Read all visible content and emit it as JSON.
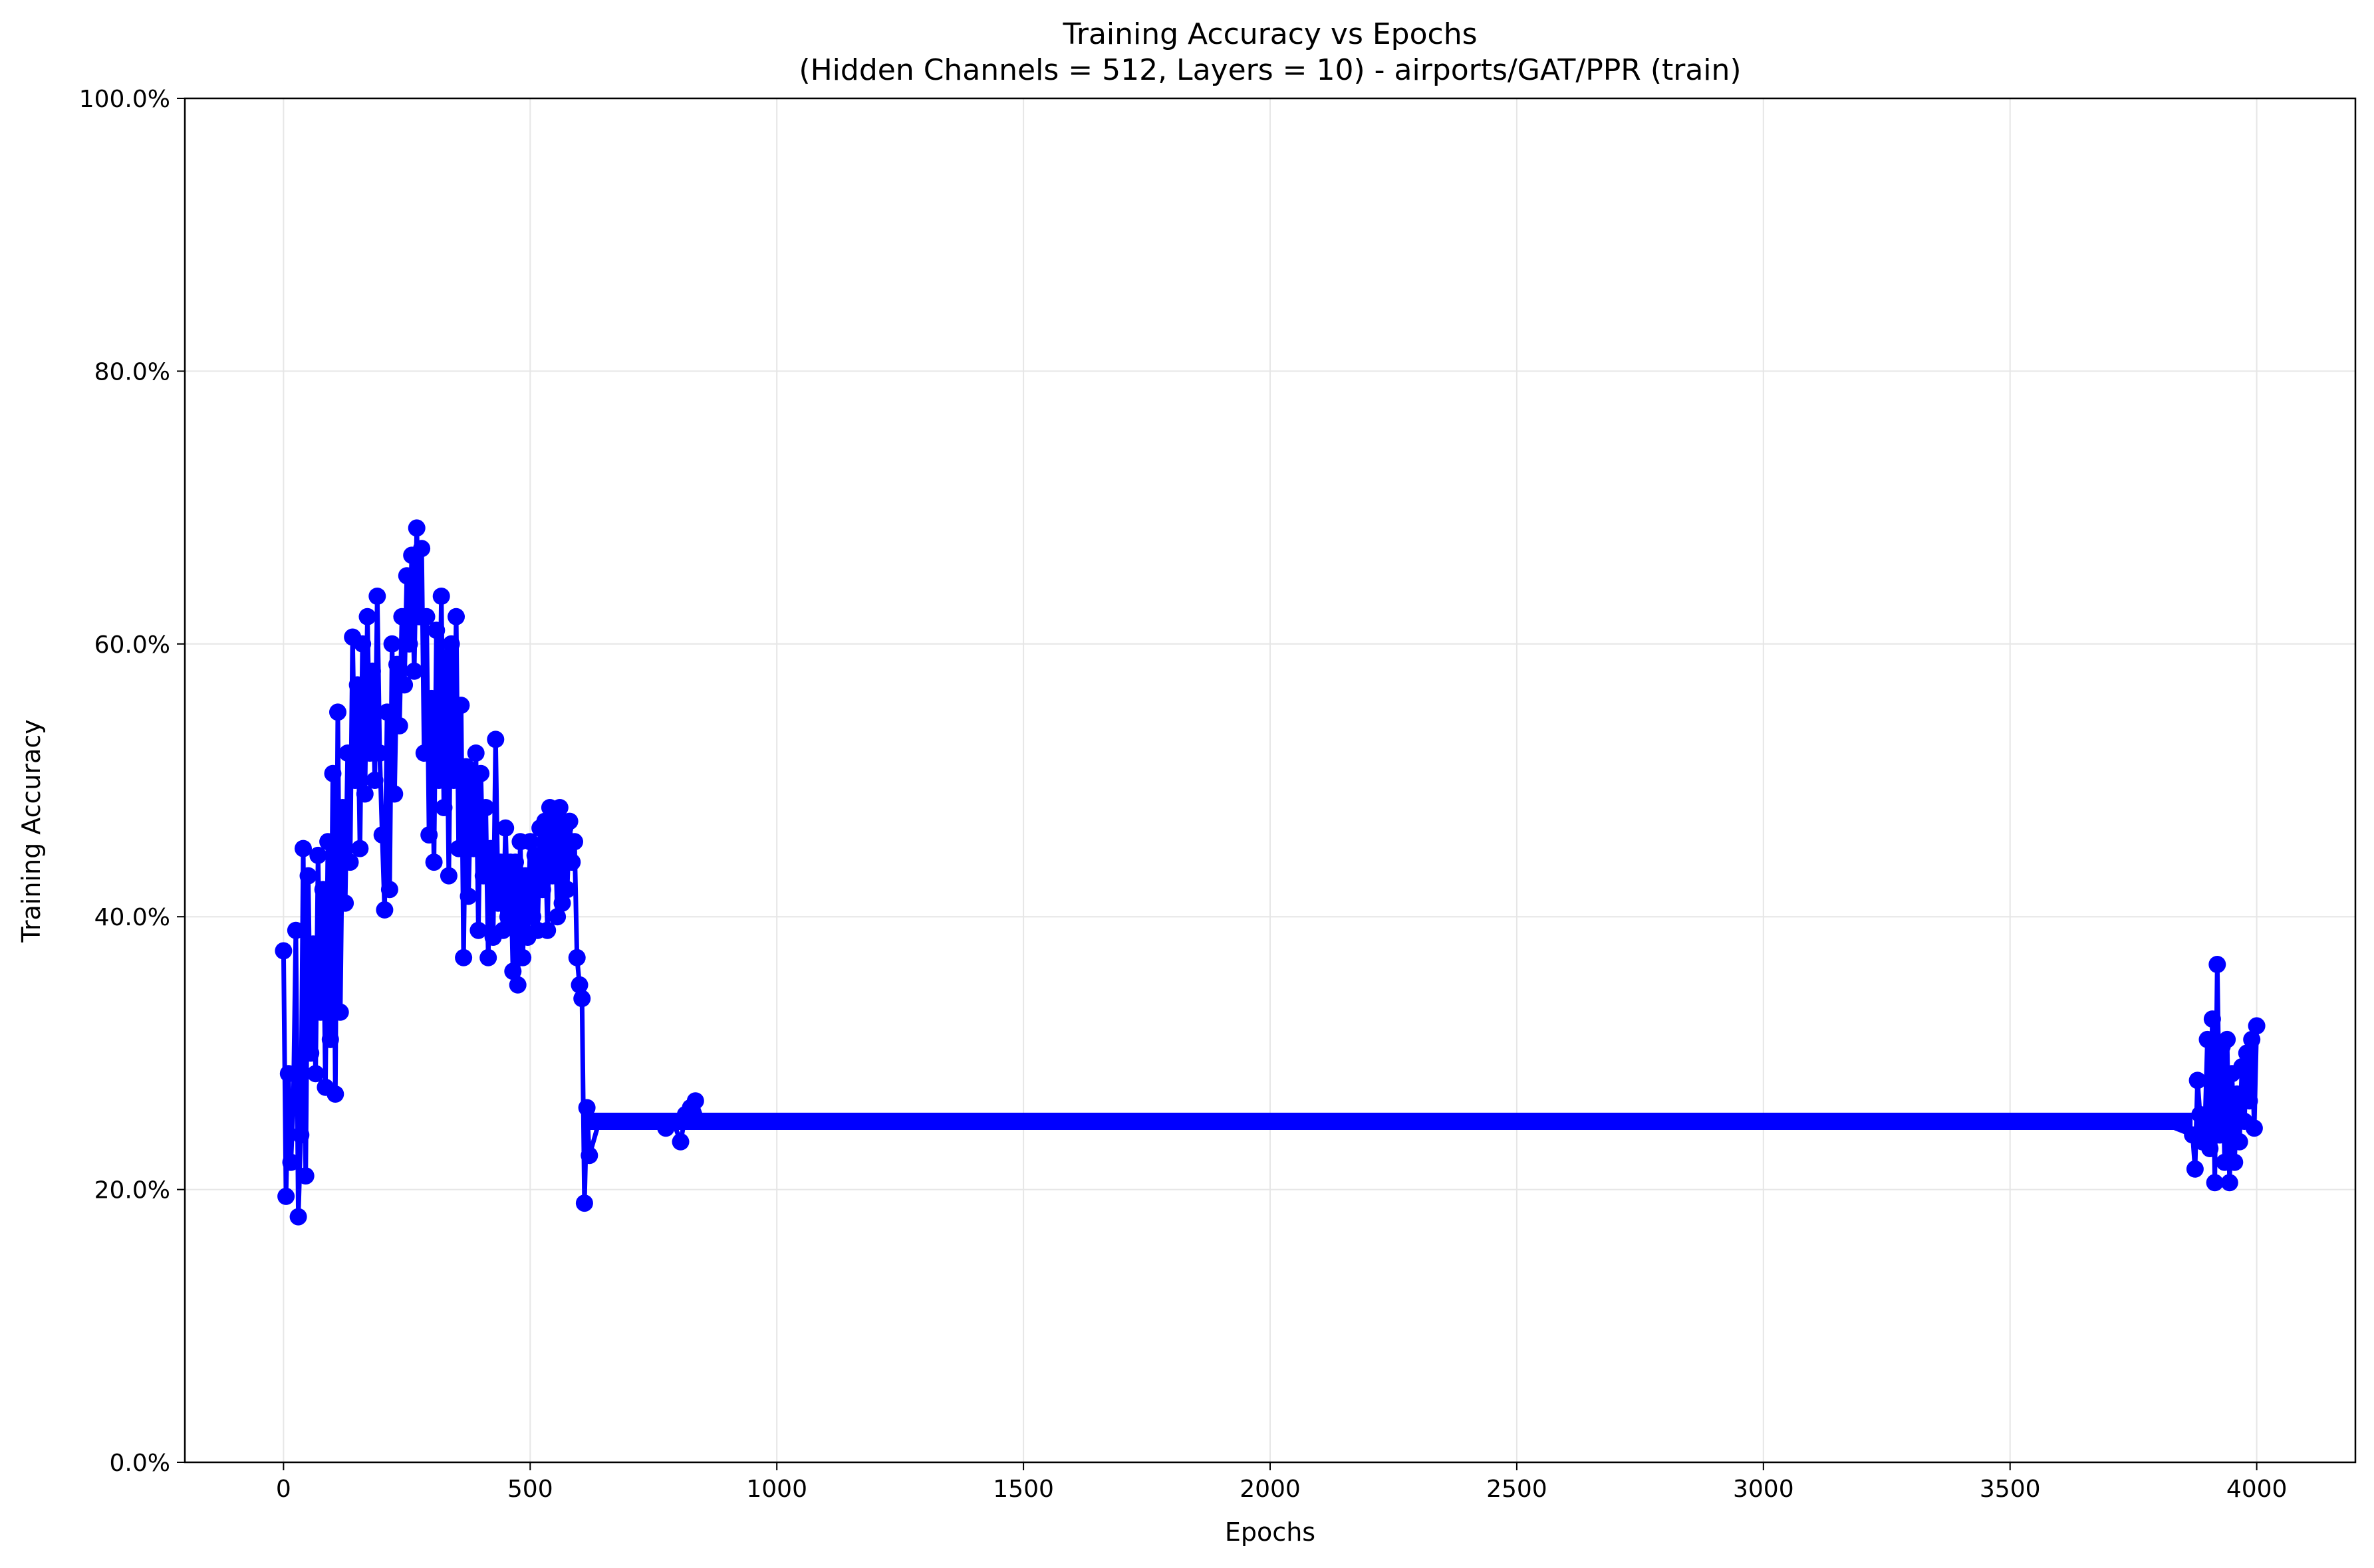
{
  "chart_data": {
    "type": "line",
    "title": "Training Accuracy vs Epochs",
    "subtitle": "(Hidden Channels = 512, Layers = 10) - airports/GAT/PPR (train)",
    "xlabel": "Epochs",
    "ylabel": "Training Accuracy",
    "xlim": [
      -200,
      4200
    ],
    "ylim": [
      0,
      1
    ],
    "xticks": [
      0,
      500,
      1000,
      1500,
      2000,
      2500,
      3000,
      3500,
      4000
    ],
    "xtick_labels": [
      "0",
      "500",
      "1000",
      "1500",
      "2000",
      "2500",
      "3000",
      "3500",
      "4000"
    ],
    "yticks": [
      0,
      0.2,
      0.4,
      0.6,
      0.8,
      1.0
    ],
    "ytick_labels": [
      "0.0%",
      "20.0%",
      "40.0%",
      "60.0%",
      "80.0%",
      "100.0%"
    ],
    "grid": true,
    "legend": "none",
    "color": "#0000ff",
    "marker": "circle",
    "series": [
      {
        "x": [
          0,
          5,
          10,
          15,
          20,
          25,
          30,
          35,
          40,
          45,
          50,
          55,
          60,
          65,
          70,
          75,
          80,
          85,
          90,
          95,
          100,
          105,
          110,
          115,
          120,
          125,
          130,
          135,
          140,
          145,
          150,
          155,
          160,
          165,
          170,
          175,
          180,
          185,
          190,
          195,
          200,
          205,
          210,
          215,
          220,
          225,
          230,
          235,
          240,
          245,
          250,
          255,
          260,
          265,
          270,
          275,
          280,
          285,
          290,
          295,
          300,
          305,
          310,
          315,
          320,
          325,
          330,
          335,
          340,
          345,
          350,
          355,
          360,
          365,
          370,
          375,
          380,
          385,
          390,
          395,
          400,
          405,
          410,
          415,
          420,
          425,
          430,
          435,
          440,
          445,
          450,
          455,
          460,
          465,
          470,
          475,
          480,
          485,
          490,
          495,
          500,
          505,
          510,
          515,
          520,
          525,
          530,
          535,
          540,
          545,
          550,
          555,
          560,
          565,
          570,
          575,
          580,
          585,
          590,
          595,
          600,
          605,
          610,
          615,
          620,
          640,
          660,
          680,
          700,
          720,
          740,
          760,
          775,
          790,
          805,
          815,
          825,
          835,
          850,
          900,
          1000,
          1200,
          1400,
          1600,
          1800,
          2000,
          2200,
          2400,
          2600,
          2800,
          3000,
          3200,
          3400,
          3600,
          3800,
          3870,
          3875,
          3880,
          3885,
          3890,
          3895,
          3900,
          3905,
          3910,
          3915,
          3920,
          3925,
          3930,
          3935,
          3940,
          3945,
          3950,
          3955,
          3960,
          3965,
          3970,
          3975,
          3980,
          3985,
          3990,
          3995,
          4000
        ],
        "y": [
          0.375,
          0.195,
          0.285,
          0.22,
          0.265,
          0.39,
          0.18,
          0.24,
          0.45,
          0.21,
          0.43,
          0.3,
          0.38,
          0.285,
          0.445,
          0.33,
          0.42,
          0.275,
          0.455,
          0.31,
          0.505,
          0.27,
          0.55,
          0.33,
          0.48,
          0.41,
          0.52,
          0.44,
          0.605,
          0.5,
          0.57,
          0.45,
          0.6,
          0.49,
          0.62,
          0.52,
          0.58,
          0.5,
          0.635,
          0.52,
          0.46,
          0.405,
          0.55,
          0.42,
          0.6,
          0.49,
          0.585,
          0.54,
          0.62,
          0.57,
          0.65,
          0.6,
          0.665,
          0.58,
          0.685,
          0.62,
          0.67,
          0.52,
          0.62,
          0.46,
          0.56,
          0.44,
          0.61,
          0.5,
          0.635,
          0.48,
          0.59,
          0.43,
          0.6,
          0.5,
          0.62,
          0.45,
          0.555,
          0.37,
          0.51,
          0.415,
          0.5,
          0.45,
          0.52,
          0.39,
          0.505,
          0.43,
          0.48,
          0.37,
          0.45,
          0.385,
          0.53,
          0.41,
          0.44,
          0.39,
          0.465,
          0.4,
          0.44,
          0.36,
          0.44,
          0.35,
          0.455,
          0.37,
          0.43,
          0.385,
          0.455,
          0.4,
          0.445,
          0.39,
          0.465,
          0.42,
          0.47,
          0.39,
          0.48,
          0.43,
          0.475,
          0.4,
          0.48,
          0.41,
          0.465,
          0.42,
          0.47,
          0.44,
          0.455,
          0.37,
          0.35,
          0.34,
          0.19,
          0.26,
          0.225,
          0.25,
          0.25,
          0.25,
          0.25,
          0.25,
          0.25,
          0.25,
          0.245,
          0.25,
          0.235,
          0.255,
          0.26,
          0.265,
          0.25,
          0.25,
          0.25,
          0.25,
          0.25,
          0.25,
          0.25,
          0.25,
          0.25,
          0.25,
          0.25,
          0.25,
          0.25,
          0.25,
          0.25,
          0.25,
          0.25,
          0.24,
          0.215,
          0.28,
          0.255,
          0.235,
          0.245,
          0.31,
          0.23,
          0.325,
          0.205,
          0.365,
          0.24,
          0.305,
          0.22,
          0.31,
          0.205,
          0.285,
          0.22,
          0.27,
          0.235,
          0.29,
          0.25,
          0.3,
          0.265,
          0.31,
          0.245,
          0.32
        ]
      }
    ]
  }
}
